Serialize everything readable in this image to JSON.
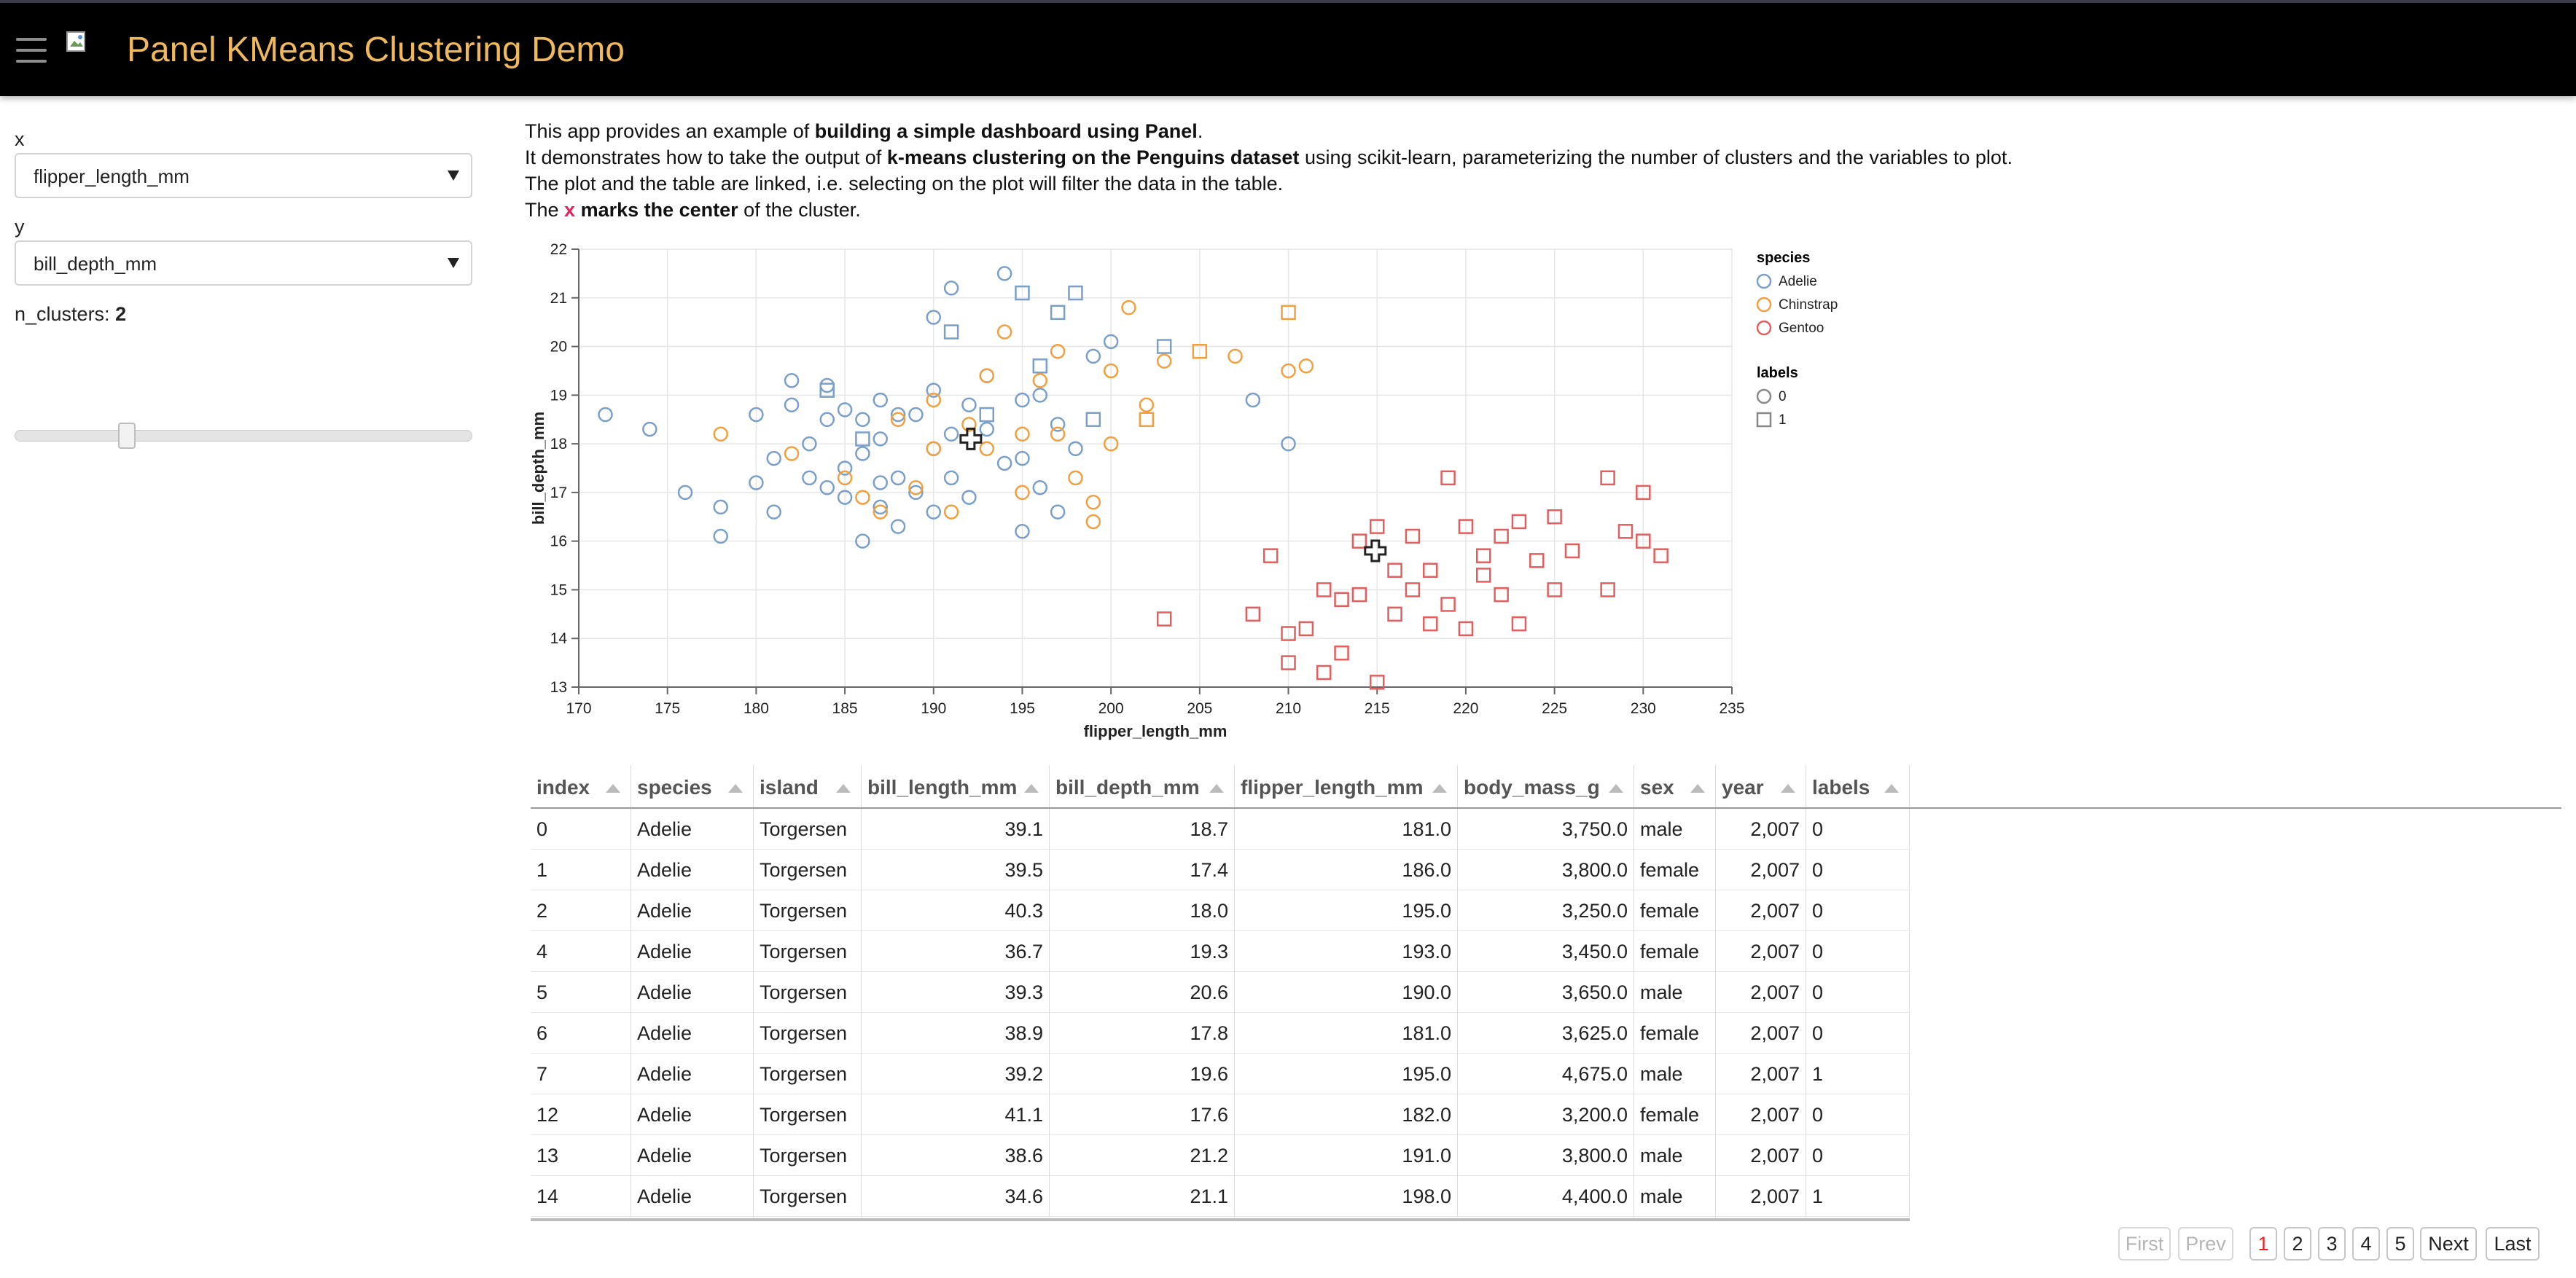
{
  "header": {
    "title": "Panel KMeans Clustering Demo"
  },
  "sidebar": {
    "x_label": "x",
    "x_value": "flipper_length_mm",
    "y_label": "y",
    "y_value": "bill_depth_mm",
    "n_clusters_label": "n_clusters:",
    "n_clusters_value": "2",
    "slider_fraction": 0.25
  },
  "description": {
    "line1_a": "This app provides an example of ",
    "line1_b": "building a simple dashboard using Panel",
    "line1_c": ".",
    "line2_a": "It demonstrates how to take the output of ",
    "line2_b": "k-means clustering on the Penguins dataset",
    "line2_c": " using scikit-learn, parameterizing the number of clusters and the variables to plot.",
    "line3": "The plot and the table are linked, i.e. selecting on the plot will filter the data in the table.",
    "line4_a": "The ",
    "line4_x": "x",
    "line4_b": " marks the center",
    "line4_c": " of the cluster."
  },
  "chart_data": {
    "type": "scatter",
    "xlabel": "flipper_length_mm",
    "ylabel": "bill_depth_mm",
    "xlim": [
      170,
      235
    ],
    "ylim": [
      13,
      22
    ],
    "xticks": [
      170,
      175,
      180,
      185,
      190,
      195,
      200,
      205,
      210,
      215,
      220,
      225,
      230,
      235
    ],
    "yticks": [
      13,
      14,
      15,
      16,
      17,
      18,
      19,
      20,
      21,
      22
    ],
    "grid": true,
    "legend_placement": "right",
    "legend": {
      "species_title": "species",
      "labels_title": "labels",
      "species": [
        {
          "name": "Adelie",
          "color": "#7a9fc9"
        },
        {
          "name": "Chinstrap",
          "color": "#f0a040"
        },
        {
          "name": "Gentoo",
          "color": "#e06060"
        }
      ],
      "labels": [
        {
          "name": "0",
          "marker": "circle"
        },
        {
          "name": "1",
          "marker": "square"
        }
      ]
    },
    "centers": [
      {
        "x": 192.1,
        "y": 18.1
      },
      {
        "x": 214.9,
        "y": 15.8
      }
    ],
    "series": [
      {
        "species": "Adelie",
        "label": "0",
        "marker": "circle",
        "x": [
          171.5,
          174,
          176,
          178,
          178,
          180,
          180,
          181,
          181,
          182,
          182,
          183,
          183,
          184,
          184,
          184,
          185,
          185,
          185,
          186,
          186,
          186,
          187,
          187,
          187,
          187,
          188,
          188,
          188,
          189,
          189,
          190,
          190,
          190,
          190,
          191,
          191,
          191,
          192,
          192,
          193,
          193,
          194,
          194,
          195,
          195,
          195,
          196,
          196,
          197,
          197,
          198,
          199,
          200,
          208,
          210
        ],
        "y": [
          18.6,
          18.3,
          17,
          16.7,
          16.1,
          18.6,
          17.2,
          17.7,
          16.6,
          19.3,
          18.8,
          18.0,
          17.3,
          19.2,
          18.5,
          17.1,
          18.7,
          17.5,
          16.9,
          18.5,
          16.0,
          17.8,
          18.1,
          17.2,
          16.7,
          18.9,
          18.6,
          17.3,
          16.3,
          18.6,
          17.0,
          20.6,
          19.1,
          17.9,
          16.6,
          21.2,
          18.2,
          17.3,
          18.8,
          16.9,
          19.4,
          18.3,
          21.5,
          17.6,
          18.9,
          17.7,
          16.2,
          19.0,
          17.1,
          18.4,
          16.6,
          17.9,
          19.8,
          20.1,
          18.9,
          18.0
        ]
      },
      {
        "species": "Adelie",
        "label": "1",
        "marker": "square",
        "x": [
          184,
          186,
          191,
          193,
          195,
          196,
          197,
          198,
          199,
          203
        ],
        "y": [
          19.1,
          18.1,
          20.3,
          18.6,
          21.1,
          19.6,
          20.7,
          21.1,
          18.5,
          20.0
        ]
      },
      {
        "species": "Chinstrap",
        "label": "0",
        "marker": "circle",
        "x": [
          178,
          182,
          185,
          186,
          187,
          188,
          189,
          190,
          190,
          191,
          192,
          193,
          193,
          194,
          195,
          195,
          196,
          197,
          197,
          198,
          199,
          199,
          200,
          200,
          201,
          202,
          203
        ],
        "y": [
          18.2,
          17.8,
          17.3,
          16.9,
          16.6,
          18.5,
          17.1,
          17.9,
          18.9,
          16.6,
          18.4,
          17.9,
          19.4,
          20.3,
          17.0,
          18.2,
          19.3,
          19.9,
          18.2,
          17.3,
          16.8,
          16.4,
          19.5,
          18.0,
          20.8,
          18.8,
          19.7
        ]
      },
      {
        "species": "Chinstrap",
        "label": "1",
        "marker": "square",
        "x": [
          202,
          205,
          210
        ],
        "y": [
          18.5,
          19.9,
          20.7
        ]
      },
      {
        "species": "Chinstrap",
        "label": "0",
        "marker": "circle",
        "x": [
          207,
          210,
          211
        ],
        "y": [
          19.8,
          19.5,
          19.6
        ]
      },
      {
        "species": "Gentoo",
        "label": "1",
        "marker": "square",
        "x": [
          203,
          208,
          209,
          210,
          210,
          211,
          212,
          212,
          213,
          213,
          214,
          214,
          215,
          215,
          216,
          216,
          217,
          217,
          218,
          218,
          219,
          219,
          220,
          220,
          221,
          221,
          222,
          222,
          223,
          223,
          224,
          225,
          225,
          226,
          228,
          228,
          229,
          230,
          230,
          231
        ],
        "y": [
          14.4,
          14.5,
          15.7,
          14.1,
          13.5,
          14.2,
          13.3,
          15.0,
          14.8,
          13.7,
          16.0,
          14.9,
          13.1,
          16.3,
          15.4,
          14.5,
          16.1,
          15.0,
          14.3,
          15.4,
          17.3,
          14.7,
          16.3,
          14.2,
          15.7,
          15.3,
          16.1,
          14.9,
          16.4,
          14.3,
          15.6,
          16.5,
          15.0,
          15.8,
          17.3,
          15.0,
          16.2,
          17.0,
          16.0,
          15.7
        ]
      }
    ]
  },
  "table": {
    "columns": [
      {
        "key": "index",
        "label": "index",
        "num": false
      },
      {
        "key": "species",
        "label": "species",
        "num": false
      },
      {
        "key": "island",
        "label": "island",
        "num": false
      },
      {
        "key": "bill_length_mm",
        "label": "bill_length_mm",
        "num": true
      },
      {
        "key": "bill_depth_mm",
        "label": "bill_depth_mm",
        "num": true
      },
      {
        "key": "flipper_length_mm",
        "label": "flipper_length_mm",
        "num": true
      },
      {
        "key": "body_mass_g",
        "label": "body_mass_g",
        "num": true
      },
      {
        "key": "sex",
        "label": "sex",
        "num": false
      },
      {
        "key": "year",
        "label": "year",
        "num": true
      },
      {
        "key": "labels",
        "label": "labels",
        "num": false
      }
    ],
    "rows": [
      [
        "0",
        "Adelie",
        "Torgersen",
        "39.1",
        "18.7",
        "181.0",
        "3,750.0",
        "male",
        "2,007",
        "0"
      ],
      [
        "1",
        "Adelie",
        "Torgersen",
        "39.5",
        "17.4",
        "186.0",
        "3,800.0",
        "female",
        "2,007",
        "0"
      ],
      [
        "2",
        "Adelie",
        "Torgersen",
        "40.3",
        "18.0",
        "195.0",
        "3,250.0",
        "female",
        "2,007",
        "0"
      ],
      [
        "4",
        "Adelie",
        "Torgersen",
        "36.7",
        "19.3",
        "193.0",
        "3,450.0",
        "female",
        "2,007",
        "0"
      ],
      [
        "5",
        "Adelie",
        "Torgersen",
        "39.3",
        "20.6",
        "190.0",
        "3,650.0",
        "male",
        "2,007",
        "0"
      ],
      [
        "6",
        "Adelie",
        "Torgersen",
        "38.9",
        "17.8",
        "181.0",
        "3,625.0",
        "female",
        "2,007",
        "0"
      ],
      [
        "7",
        "Adelie",
        "Torgersen",
        "39.2",
        "19.6",
        "195.0",
        "4,675.0",
        "male",
        "2,007",
        "1"
      ],
      [
        "12",
        "Adelie",
        "Torgersen",
        "41.1",
        "17.6",
        "182.0",
        "3,200.0",
        "female",
        "2,007",
        "0"
      ],
      [
        "13",
        "Adelie",
        "Torgersen",
        "38.6",
        "21.2",
        "191.0",
        "3,800.0",
        "male",
        "2,007",
        "0"
      ],
      [
        "14",
        "Adelie",
        "Torgersen",
        "34.6",
        "21.1",
        "198.0",
        "4,400.0",
        "male",
        "2,007",
        "1"
      ]
    ]
  },
  "pagination": {
    "first": "First",
    "prev": "Prev",
    "pages": [
      "1",
      "2",
      "3",
      "4",
      "5"
    ],
    "active_page": "1",
    "next": "Next",
    "last": "Last"
  }
}
